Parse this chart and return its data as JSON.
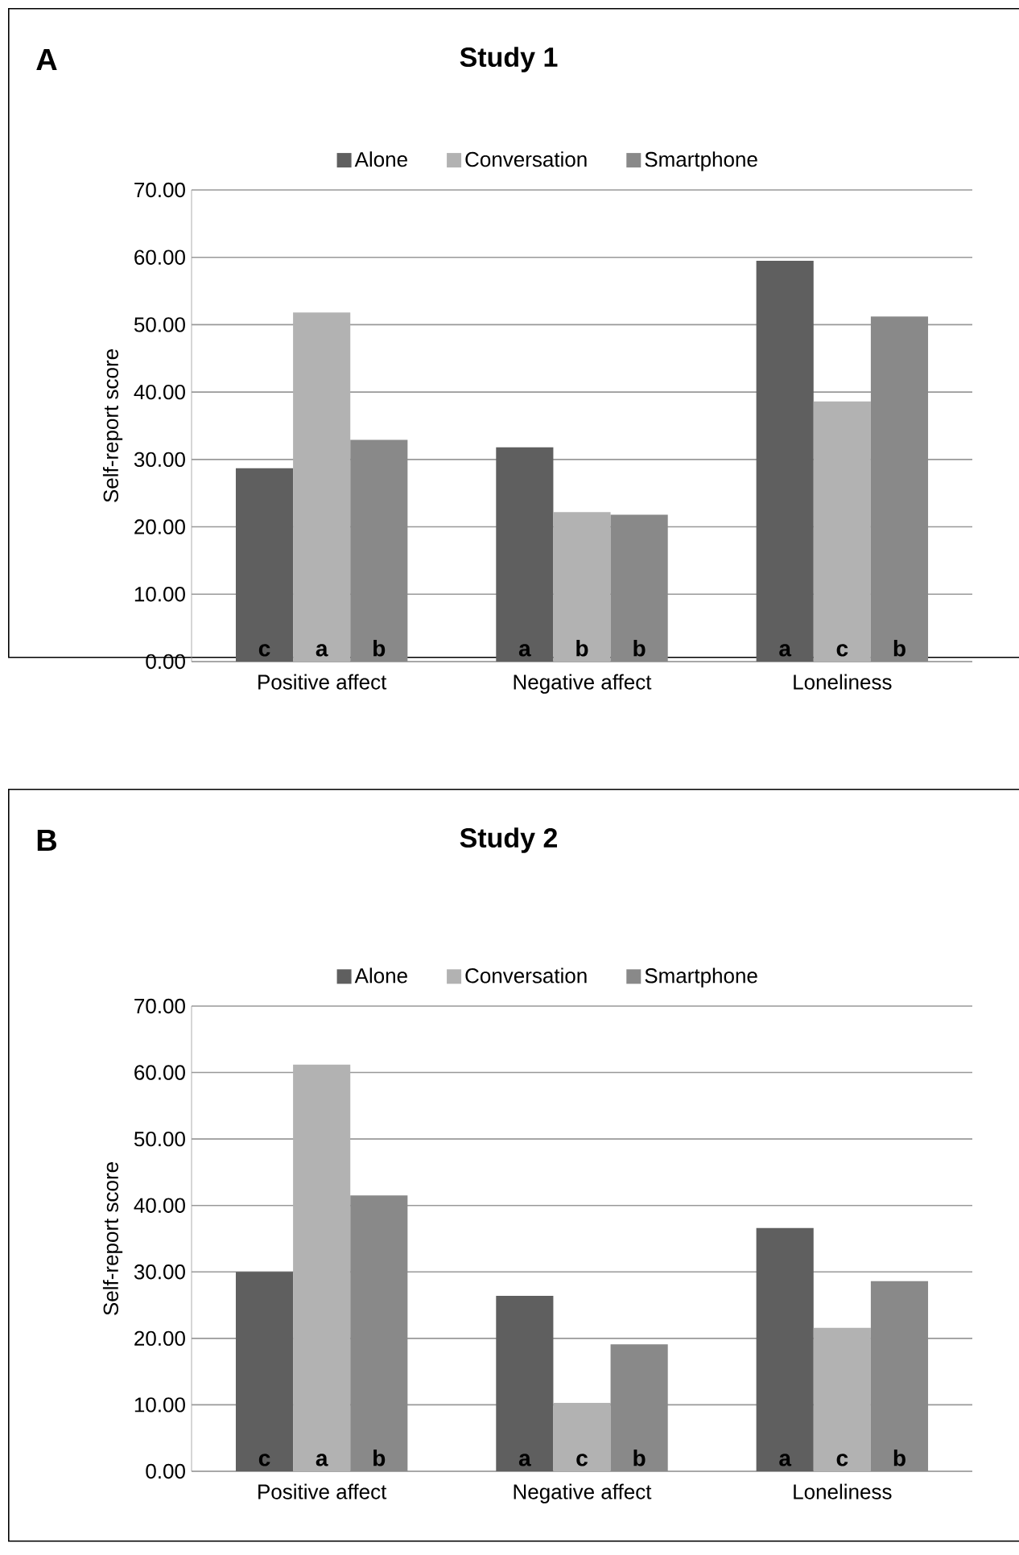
{
  "chart_data": [
    {
      "type": "bar",
      "title": "Study 1",
      "ylabel": "Self-report score",
      "categories": [
        "Positive affect",
        "Negative affect",
        "Loneliness"
      ],
      "series": [
        {
          "name": "Alone",
          "color": "#5f5f5f",
          "values": [
            28.7,
            31.8,
            59.5
          ]
        },
        {
          "name": "Conversation",
          "color": "#b2b2b2",
          "values": [
            51.8,
            22.2,
            38.6
          ]
        },
        {
          "name": "Smartphone",
          "color": "#898989",
          "values": [
            32.9,
            21.8,
            51.2
          ]
        }
      ],
      "ylim": [
        0,
        70
      ],
      "yticks": [
        {
          "value": 0,
          "label": "0.00"
        },
        {
          "value": 10,
          "label": "10.00"
        },
        {
          "value": 20,
          "label": "20.00"
        },
        {
          "value": 30,
          "label": "30.00"
        },
        {
          "value": 40,
          "label": "40.00"
        },
        {
          "value": 50,
          "label": "50.00"
        },
        {
          "value": 60,
          "label": "60.00"
        },
        {
          "value": 70,
          "label": "70.00"
        }
      ],
      "grid": "y",
      "legend": "top",
      "annotations": [
        "A",
        {
          "text": "c",
          "x": "Positive affect",
          "y": 0
        },
        {
          "text": "a",
          "x": "Positive affect",
          "y": 0
        },
        {
          "text": "b",
          "x": "Positive affect",
          "y": 0
        },
        {
          "text": "a",
          "x": "Negative affect",
          "y": 0
        },
        {
          "text": "b",
          "x": "Negative affect",
          "y": 0
        },
        {
          "text": "b",
          "x": "Negative affect",
          "y": 0
        },
        {
          "text": "a",
          "x": "Loneliness",
          "y": 0
        },
        {
          "text": "c",
          "x": "Loneliness",
          "y": 0
        },
        {
          "text": "b",
          "x": "Loneliness",
          "y": 0
        }
      ]
    },
    {
      "type": "bar",
      "title": "Study 2",
      "ylabel": "Self-report score",
      "categories": [
        "Positive affect",
        "Negative affect",
        "Loneliness"
      ],
      "series": [
        {
          "name": "Alone",
          "color": "#5f5f5f",
          "values": [
            30.0,
            26.4,
            36.6
          ]
        },
        {
          "name": "Conversation",
          "color": "#b2b2b2",
          "values": [
            61.2,
            10.3,
            21.6
          ]
        },
        {
          "name": "Smartphone",
          "color": "#898989",
          "values": [
            41.5,
            19.1,
            28.6
          ]
        }
      ],
      "ylim": [
        0,
        70
      ],
      "yticks": [
        {
          "value": 0,
          "label": "0.00"
        },
        {
          "value": 10,
          "label": "10.00"
        },
        {
          "value": 20,
          "label": "20.00"
        },
        {
          "value": 30,
          "label": "30.00"
        },
        {
          "value": 40,
          "label": "40.00"
        },
        {
          "value": 50,
          "label": "50.00"
        },
        {
          "value": 60,
          "label": "60.00"
        },
        {
          "value": 70,
          "label": "70.00"
        }
      ],
      "grid": "y",
      "legend": "top",
      "annotations": [
        "B",
        {
          "text": "c",
          "x": "Positive affect",
          "y": 0
        },
        {
          "text": "a",
          "x": "Positive affect",
          "y": 0
        },
        {
          "text": "b",
          "x": "Positive affect",
          "y": 0
        },
        {
          "text": "a",
          "x": "Negative affect",
          "y": 0
        },
        {
          "text": "c",
          "x": "Negative affect",
          "y": 0
        },
        {
          "text": "b",
          "x": "Negative affect",
          "y": 0
        },
        {
          "text": "a",
          "x": "Loneliness",
          "y": 0
        },
        {
          "text": "c",
          "x": "Loneliness",
          "y": 0
        },
        {
          "text": "b",
          "x": "Loneliness",
          "y": 0
        }
      ]
    }
  ]
}
